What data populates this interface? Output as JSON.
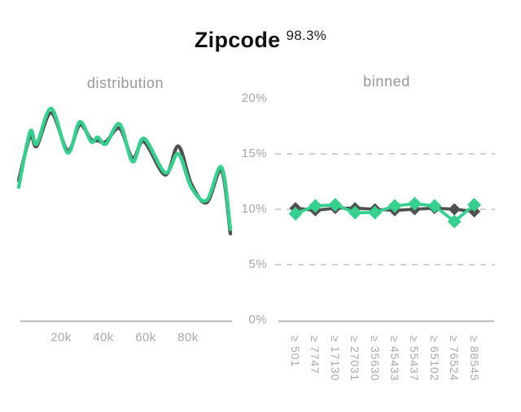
{
  "title": {
    "text": "Zipcode",
    "superscript": "98.3%"
  },
  "colors": {
    "green": "#35d08e",
    "dark_gray": "#505050",
    "axis_line": "#aeaeae",
    "gridline": "#c9c9c9",
    "tick_label": "#a5a5a5",
    "panel_label": "#979797",
    "title_text": "#111111"
  },
  "y_axis": {
    "tick_labels": [
      "20%",
      "15%",
      "10%",
      "5%",
      "0%"
    ],
    "tick_values": [
      20,
      15,
      10,
      5,
      0
    ],
    "range": [
      0,
      20
    ]
  },
  "chart_data": [
    {
      "type": "line",
      "title": "distribution",
      "x_tick_labels": [
        "20k",
        "40k",
        "60k",
        "80k"
      ],
      "x_tick_values": [
        20000,
        40000,
        60000,
        80000
      ],
      "x_range": [
        0,
        100000
      ],
      "ylim": [
        0,
        20
      ],
      "grid": "off",
      "legend": "none",
      "series": [
        {
          "name": "dark",
          "color_key": "dark_gray",
          "points": [
            [
              0,
              12.6
            ],
            [
              5400,
              16.6
            ],
            [
              8500,
              15.7
            ],
            [
              15400,
              18.7
            ],
            [
              23100,
              15.3
            ],
            [
              28800,
              17.6
            ],
            [
              34200,
              16.3
            ],
            [
              37300,
              16.2
            ],
            [
              41200,
              16.1
            ],
            [
              47700,
              17.3
            ],
            [
              53800,
              14.6
            ],
            [
              59200,
              16.1
            ],
            [
              69200,
              13.1
            ],
            [
              75400,
              15.7
            ],
            [
              81500,
              12.3
            ],
            [
              88800,
              10.6
            ],
            [
              95800,
              13.5
            ],
            [
              100000,
              7.8
            ]
          ]
        },
        {
          "name": "green",
          "color_key": "green",
          "points": [
            [
              0,
              12.0
            ],
            [
              5400,
              17.0
            ],
            [
              8500,
              15.9
            ],
            [
              15400,
              19.1
            ],
            [
              23100,
              15.1
            ],
            [
              28800,
              17.9
            ],
            [
              34200,
              16.1
            ],
            [
              37300,
              16.5
            ],
            [
              41200,
              15.9
            ],
            [
              47700,
              17.7
            ],
            [
              53800,
              14.3
            ],
            [
              59200,
              16.4
            ],
            [
              69200,
              13.3
            ],
            [
              75400,
              15.0
            ],
            [
              81500,
              12.0
            ],
            [
              88800,
              10.8
            ],
            [
              95800,
              13.8
            ],
            [
              100000,
              8.2
            ]
          ]
        }
      ]
    },
    {
      "type": "line",
      "marker": "diamond",
      "title": "binned",
      "categories": [
        "≥ 501",
        "≥ 7747",
        "≥ 17130",
        "≥ 27031",
        "≥ 35630",
        "≥ 45433",
        "≥ 55437",
        "≥ 65102",
        "≥ 76524",
        "≥ 88545"
      ],
      "ylim": [
        0,
        20
      ],
      "gridline_values": [
        15,
        10,
        5
      ],
      "legend": "none",
      "series": [
        {
          "name": "dark",
          "color_key": "dark_gray",
          "values": [
            10.1,
            9.9,
            10.1,
            10.1,
            10.0,
            9.9,
            10.0,
            10.1,
            10.0,
            9.8
          ]
        },
        {
          "name": "green",
          "color_key": "green",
          "values": [
            9.6,
            10.3,
            10.4,
            9.7,
            9.7,
            10.3,
            10.5,
            10.3,
            8.9,
            10.4
          ]
        }
      ]
    }
  ]
}
